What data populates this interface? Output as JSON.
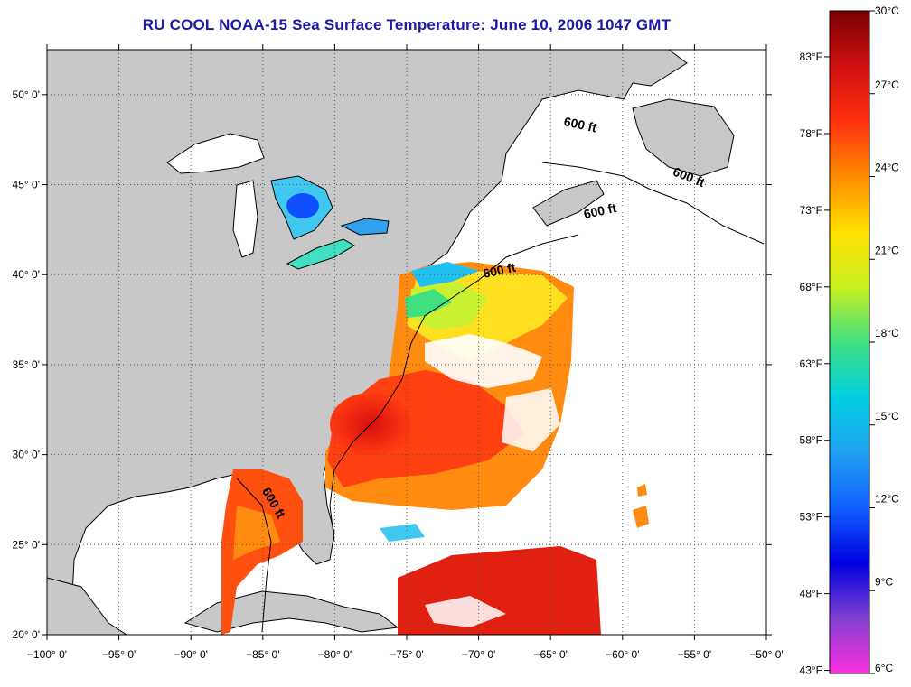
{
  "title": "RU COOL  NOAA-15  Sea Surface Temperature:  June 10, 2006 1047 GMT",
  "map": {
    "lon_range": [
      -100,
      -50
    ],
    "lat_range": [
      20,
      52.5
    ],
    "lon_ticks": [
      {
        "value": -100,
        "label": "−100° 0'"
      },
      {
        "value": -95,
        "label": "−95° 0'"
      },
      {
        "value": -90,
        "label": "−90° 0'"
      },
      {
        "value": -85,
        "label": "−85° 0'"
      },
      {
        "value": -80,
        "label": "−80° 0'"
      },
      {
        "value": -75,
        "label": "−75° 0'"
      },
      {
        "value": -70,
        "label": "−70° 0'"
      },
      {
        "value": -65,
        "label": "−65° 0'"
      },
      {
        "value": -60,
        "label": "−60° 0'"
      },
      {
        "value": -55,
        "label": "−55° 0'"
      },
      {
        "value": -50,
        "label": "−50° 0'"
      }
    ],
    "lat_ticks": [
      {
        "value": 20,
        "label": "20° 0'"
      },
      {
        "value": 25,
        "label": "25° 0'"
      },
      {
        "value": 30,
        "label": "30° 0'"
      },
      {
        "value": 35,
        "label": "35° 0'"
      },
      {
        "value": 40,
        "label": "40° 0'"
      },
      {
        "value": 45,
        "label": "45° 0'"
      },
      {
        "value": 50,
        "label": "50° 0'"
      }
    ],
    "contour_labels": [
      {
        "text": "600 ft",
        "lon": -63,
        "lat": 48.1,
        "angle": 12
      },
      {
        "text": "600 ft",
        "lon": -55.5,
        "lat": 45.2,
        "angle": 22
      },
      {
        "text": "600 ft",
        "lon": -61.5,
        "lat": 43.3,
        "angle": -12
      },
      {
        "text": "600 ft",
        "lon": -68.5,
        "lat": 40.0,
        "angle": -12
      },
      {
        "text": "600 ft",
        "lon": -84.5,
        "lat": 27.2,
        "angle": 60
      }
    ],
    "colors": {
      "land": "#c8c8c8",
      "water": "#ffffff",
      "grid": "#555555"
    }
  },
  "colorbar": {
    "celsius_labels": [
      {
        "value": 30,
        "label": "30°C"
      },
      {
        "value": 27,
        "label": "27°C"
      },
      {
        "value": 24,
        "label": "24°C"
      },
      {
        "value": 21,
        "label": "21°C"
      },
      {
        "value": 18,
        "label": "18°C"
      },
      {
        "value": 15,
        "label": "15°C"
      },
      {
        "value": 12,
        "label": "12°C"
      },
      {
        "value": 9,
        "label": "9°C"
      },
      {
        "value": 6,
        "label": "6°C"
      }
    ],
    "fahrenheit_labels": [
      {
        "value": 83,
        "label": "83°F"
      },
      {
        "value": 78,
        "label": "78°F"
      },
      {
        "value": 73,
        "label": "73°F"
      },
      {
        "value": 68,
        "label": "68°F"
      },
      {
        "value": 63,
        "label": "63°F"
      },
      {
        "value": 58,
        "label": "58°F"
      },
      {
        "value": 53,
        "label": "53°F"
      },
      {
        "value": 48,
        "label": "48°F"
      },
      {
        "value": 43,
        "label": "43°F"
      }
    ],
    "stops": [
      "#7a0000",
      "#d01010",
      "#ff3010",
      "#ff8c00",
      "#ffe000",
      "#c8f020",
      "#40e080",
      "#00d0e0",
      "#20a0f0",
      "#1060ff",
      "#0000e0",
      "#8040d0",
      "#ff30e0"
    ]
  }
}
